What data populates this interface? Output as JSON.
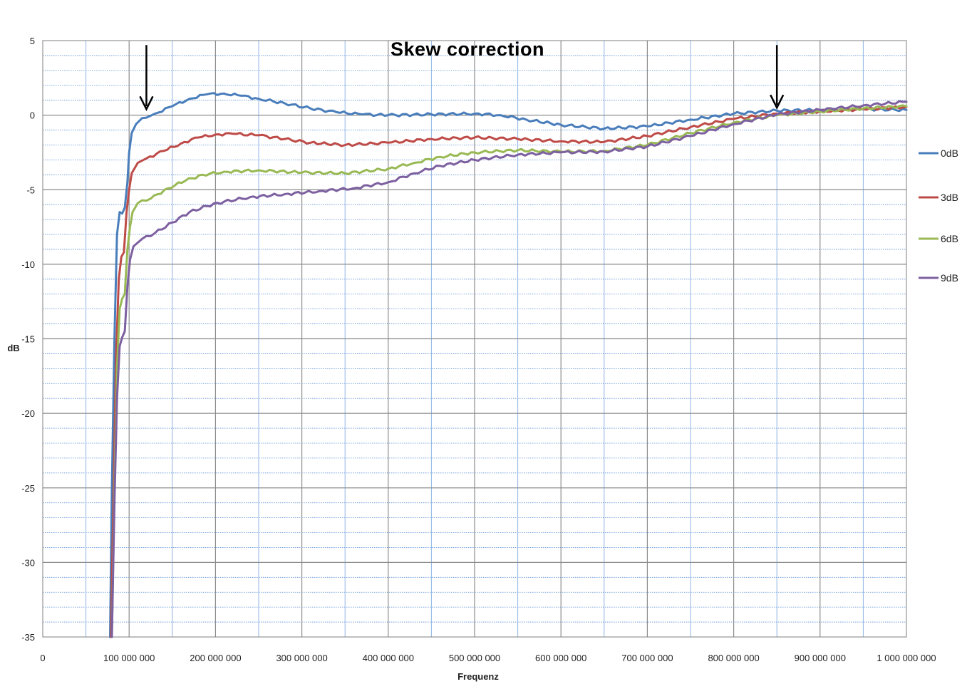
{
  "chart_data": {
    "type": "line",
    "title": "Skew  correction",
    "xlabel": "Frequenz",
    "ylabel": "dB",
    "xlim": [
      0,
      1000000000
    ],
    "ylim": [
      -35,
      5
    ],
    "x_ticks": [
      0,
      100000000,
      200000000,
      300000000,
      400000000,
      500000000,
      600000000,
      700000000,
      800000000,
      900000000,
      1000000000
    ],
    "x_tick_labels": [
      "0",
      "100 000 000",
      "200 000 000",
      "300 000 000",
      "400 000 000",
      "500 000 000",
      "600 000 000",
      "700 000 000",
      "800 000 000",
      "900 000 000",
      "1 000 000 000"
    ],
    "y_ticks": [
      5,
      0,
      -5,
      -10,
      -15,
      -20,
      -25,
      -30,
      -35
    ],
    "y_tick_labels": [
      "5",
      "0",
      "-5",
      "-10",
      "-15",
      "-20",
      "-25",
      "-30",
      "-35"
    ],
    "grid": true,
    "legend_position": "right",
    "annotations": [
      {
        "type": "arrow-down",
        "x": 120000000,
        "y_from": 4.7,
        "y_to": 0.4
      },
      {
        "type": "arrow-down",
        "x": 850000000,
        "y_from": 4.7,
        "y_to": 0.5
      }
    ],
    "series": [
      {
        "name": "0dB",
        "color": "#4a7ebb",
        "points": [
          [
            78000000,
            -35
          ],
          [
            80000000,
            -25
          ],
          [
            83000000,
            -15
          ],
          [
            86000000,
            -8
          ],
          [
            89000000,
            -6.5
          ],
          [
            92000000,
            -6.6
          ],
          [
            95000000,
            -6.2
          ],
          [
            98000000,
            -4.5
          ],
          [
            100000000,
            -2.5
          ],
          [
            103000000,
            -1.2
          ],
          [
            108000000,
            -0.6
          ],
          [
            115000000,
            -0.2
          ],
          [
            130000000,
            0.1
          ],
          [
            150000000,
            0.6
          ],
          [
            170000000,
            1.1
          ],
          [
            190000000,
            1.4
          ],
          [
            210000000,
            1.45
          ],
          [
            230000000,
            1.3
          ],
          [
            250000000,
            1.1
          ],
          [
            280000000,
            0.8
          ],
          [
            310000000,
            0.45
          ],
          [
            340000000,
            0.2
          ],
          [
            370000000,
            0.05
          ],
          [
            400000000,
            0.0
          ],
          [
            450000000,
            0.05
          ],
          [
            500000000,
            0.1
          ],
          [
            530000000,
            0.0
          ],
          [
            560000000,
            -0.3
          ],
          [
            600000000,
            -0.65
          ],
          [
            650000000,
            -0.9
          ],
          [
            700000000,
            -0.75
          ],
          [
            750000000,
            -0.3
          ],
          [
            800000000,
            0.1
          ],
          [
            850000000,
            0.3
          ],
          [
            900000000,
            0.35
          ],
          [
            950000000,
            0.4
          ],
          [
            1000000000,
            0.35
          ]
        ]
      },
      {
        "name": "3dB",
        "color": "#be4b48",
        "points": [
          [
            79000000,
            -35
          ],
          [
            82000000,
            -25
          ],
          [
            85000000,
            -16
          ],
          [
            88000000,
            -11
          ],
          [
            91000000,
            -9.5
          ],
          [
            94000000,
            -9.2
          ],
          [
            97000000,
            -6.5
          ],
          [
            100000000,
            -5.0
          ],
          [
            103000000,
            -3.9
          ],
          [
            110000000,
            -3.2
          ],
          [
            120000000,
            -2.9
          ],
          [
            140000000,
            -2.4
          ],
          [
            160000000,
            -1.9
          ],
          [
            180000000,
            -1.5
          ],
          [
            200000000,
            -1.3
          ],
          [
            220000000,
            -1.25
          ],
          [
            250000000,
            -1.35
          ],
          [
            280000000,
            -1.6
          ],
          [
            310000000,
            -1.85
          ],
          [
            350000000,
            -2.0
          ],
          [
            400000000,
            -1.85
          ],
          [
            450000000,
            -1.6
          ],
          [
            500000000,
            -1.5
          ],
          [
            550000000,
            -1.6
          ],
          [
            600000000,
            -1.75
          ],
          [
            650000000,
            -1.8
          ],
          [
            700000000,
            -1.4
          ],
          [
            750000000,
            -0.8
          ],
          [
            800000000,
            -0.25
          ],
          [
            850000000,
            0.1
          ],
          [
            900000000,
            0.25
          ],
          [
            950000000,
            0.4
          ],
          [
            1000000000,
            0.55
          ]
        ]
      },
      {
        "name": "6dB",
        "color": "#98b954",
        "points": [
          [
            80000000,
            -35
          ],
          [
            83000000,
            -25
          ],
          [
            86000000,
            -17
          ],
          [
            89000000,
            -13
          ],
          [
            92000000,
            -12.3
          ],
          [
            95000000,
            -12.0
          ],
          [
            98000000,
            -9.0
          ],
          [
            101000000,
            -7.5
          ],
          [
            104000000,
            -6.5
          ],
          [
            110000000,
            -5.9
          ],
          [
            125000000,
            -5.6
          ],
          [
            145000000,
            -4.9
          ],
          [
            165000000,
            -4.4
          ],
          [
            185000000,
            -4.0
          ],
          [
            210000000,
            -3.8
          ],
          [
            250000000,
            -3.7
          ],
          [
            300000000,
            -3.85
          ],
          [
            350000000,
            -3.9
          ],
          [
            400000000,
            -3.6
          ],
          [
            430000000,
            -3.2
          ],
          [
            460000000,
            -2.8
          ],
          [
            500000000,
            -2.5
          ],
          [
            550000000,
            -2.35
          ],
          [
            600000000,
            -2.45
          ],
          [
            650000000,
            -2.4
          ],
          [
            700000000,
            -2.0
          ],
          [
            750000000,
            -1.2
          ],
          [
            800000000,
            -0.5
          ],
          [
            850000000,
            0.0
          ],
          [
            900000000,
            0.25
          ],
          [
            950000000,
            0.45
          ],
          [
            1000000000,
            0.6
          ]
        ]
      },
      {
        "name": "9dB",
        "color": "#7d60a0",
        "points": [
          [
            80000000,
            -35
          ],
          [
            83000000,
            -26
          ],
          [
            86000000,
            -19
          ],
          [
            89000000,
            -15.5
          ],
          [
            92000000,
            -14.9
          ],
          [
            95000000,
            -14.5
          ],
          [
            98000000,
            -11.5
          ],
          [
            101000000,
            -9.7
          ],
          [
            105000000,
            -8.8
          ],
          [
            115000000,
            -8.3
          ],
          [
            130000000,
            -7.9
          ],
          [
            150000000,
            -7.2
          ],
          [
            170000000,
            -6.5
          ],
          [
            190000000,
            -6.1
          ],
          [
            210000000,
            -5.8
          ],
          [
            240000000,
            -5.5
          ],
          [
            280000000,
            -5.3
          ],
          [
            320000000,
            -5.1
          ],
          [
            360000000,
            -4.9
          ],
          [
            400000000,
            -4.5
          ],
          [
            430000000,
            -3.9
          ],
          [
            460000000,
            -3.4
          ],
          [
            500000000,
            -3.0
          ],
          [
            550000000,
            -2.65
          ],
          [
            600000000,
            -2.5
          ],
          [
            650000000,
            -2.45
          ],
          [
            700000000,
            -2.1
          ],
          [
            750000000,
            -1.4
          ],
          [
            800000000,
            -0.6
          ],
          [
            850000000,
            0.05
          ],
          [
            900000000,
            0.35
          ],
          [
            950000000,
            0.65
          ],
          [
            1000000000,
            0.9
          ]
        ]
      }
    ]
  }
}
